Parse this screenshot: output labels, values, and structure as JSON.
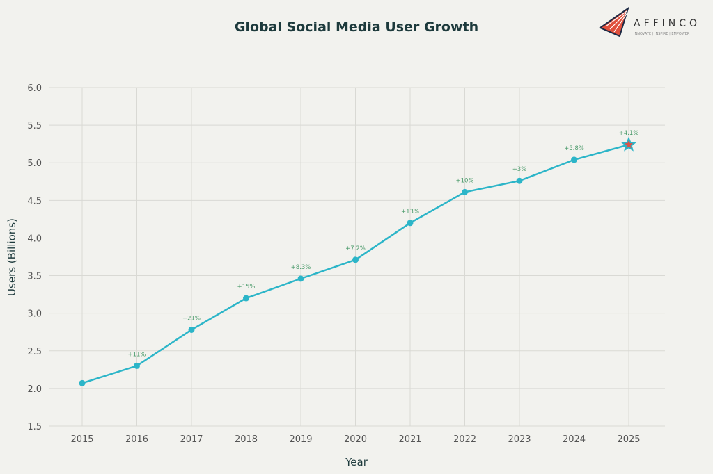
{
  "chart_data": {
    "type": "line",
    "title": "Global Social Media User Growth",
    "xlabel": "Year",
    "ylabel": "Users (Billions)",
    "ylim": [
      1.5,
      6.0
    ],
    "yticks": [
      "1.5",
      "2.0",
      "2.5",
      "3.0",
      "3.5",
      "4.0",
      "4.5",
      "5.0",
      "5.5",
      "6.0"
    ],
    "categories": [
      "2015",
      "2016",
      "2017",
      "2018",
      "2019",
      "2020",
      "2021",
      "2022",
      "2023",
      "2024",
      "2025"
    ],
    "values": [
      2.07,
      2.3,
      2.78,
      3.2,
      3.46,
      3.71,
      4.2,
      4.61,
      4.76,
      5.04,
      5.24
    ],
    "annotations": [
      "",
      "+11%",
      "+21%",
      "+15%",
      "+8.3%",
      "+7.2%",
      "+13%",
      "+10%",
      "+3%",
      "+5.8%",
      "+4.1%"
    ],
    "last_point_marker": "star",
    "grid": true,
    "colors": {
      "line": "#2cb5c8",
      "annotation": "#4a9a6a",
      "star_fill": "#d9544a",
      "background": "#f2f2ee"
    }
  },
  "logo": {
    "name": "AFFINCO",
    "tagline": "INNOVATE | INSPIRE | EMPOWER"
  }
}
